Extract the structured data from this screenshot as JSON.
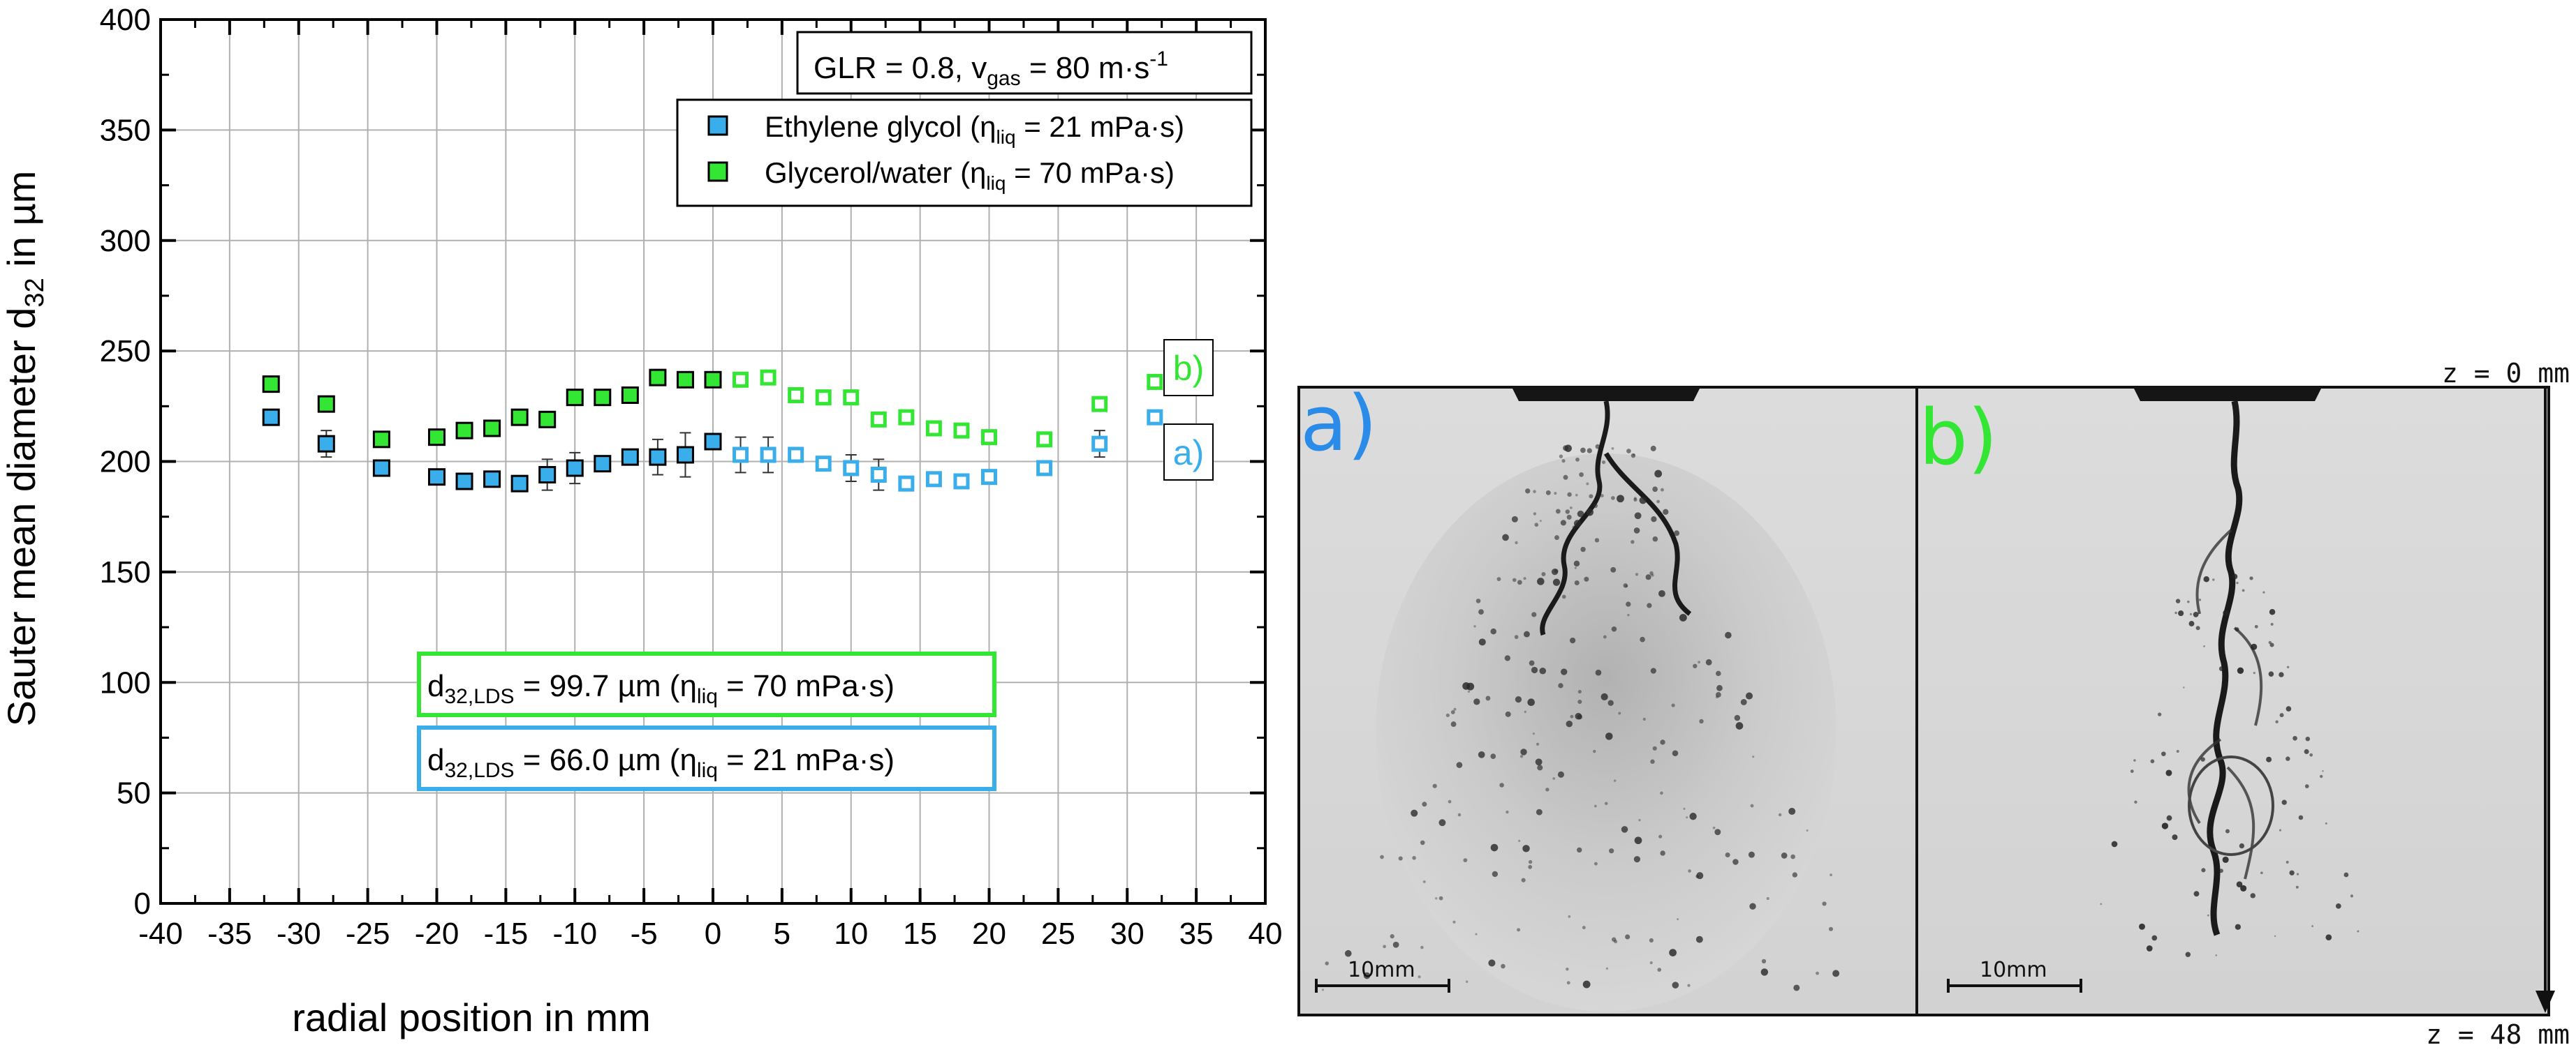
{
  "chart_data": {
    "type": "scatter",
    "xlabel": "radial position in mm",
    "ylabel_main": "Sauter mean diameter d",
    "ylabel_sub": "32",
    "ylabel_tail": " in µm",
    "xlim": [
      -40,
      40
    ],
    "ylim": [
      0,
      400
    ],
    "xticks": [
      "-40",
      "-35",
      "-30",
      "-25",
      "-20",
      "-15",
      "-10",
      "-5",
      "0",
      "5",
      "10",
      "15",
      "20",
      "25",
      "30",
      "35",
      "40"
    ],
    "yticks": [
      "0",
      "50",
      "100",
      "150",
      "200",
      "250",
      "300",
      "350",
      "400"
    ],
    "grid": true,
    "legend_placement": "top-right",
    "condition": {
      "pre": "GLR = 0.8, v",
      "sub": "gas",
      "mid": " = 80 m·s",
      "sup": "-1"
    },
    "series": [
      {
        "name": "Ethylene glycol (η_liq = 21 mPa·s)",
        "legend": {
          "pre": "Ethylene glycol (η",
          "sub": "liq",
          "post": " = 21 mPa·s)"
        },
        "color": "#3aaeea",
        "label": "a)",
        "filled": [
          [
            -32,
            220,
            0
          ],
          [
            -28,
            208,
            6
          ],
          [
            -24,
            197,
            0
          ],
          [
            -20,
            193,
            0
          ],
          [
            -18,
            191,
            0
          ],
          [
            -16,
            192,
            0
          ],
          [
            -14,
            190,
            0
          ],
          [
            -12,
            194,
            7
          ],
          [
            -10,
            197,
            7
          ],
          [
            -8,
            199,
            0
          ],
          [
            -6,
            202,
            0
          ],
          [
            -4,
            202,
            8
          ],
          [
            -2,
            203,
            10
          ],
          [
            0,
            209,
            0
          ]
        ],
        "open": [
          [
            2,
            203,
            8
          ],
          [
            4,
            203,
            8
          ],
          [
            6,
            203,
            0
          ],
          [
            8,
            199,
            0
          ],
          [
            10,
            197,
            6
          ],
          [
            12,
            194,
            7
          ],
          [
            14,
            190,
            0
          ],
          [
            16,
            192,
            0
          ],
          [
            18,
            191,
            0
          ],
          [
            20,
            193,
            0
          ],
          [
            24,
            197,
            0
          ],
          [
            28,
            208,
            6
          ],
          [
            32,
            220,
            0
          ]
        ]
      },
      {
        "name": "Glycerol/water (η_liq = 70 mPa·s)",
        "legend": {
          "pre": "Glycerol/water (η",
          "sub": "liq",
          "post": " = 70 mPa·s)"
        },
        "color": "#33e633",
        "label": "b)",
        "filled": [
          [
            -32,
            235,
            0
          ],
          [
            -28,
            226,
            0
          ],
          [
            -24,
            210,
            0
          ],
          [
            -20,
            211,
            0
          ],
          [
            -18,
            214,
            0
          ],
          [
            -16,
            215,
            0
          ],
          [
            -14,
            220,
            0
          ],
          [
            -12,
            219,
            0
          ],
          [
            -10,
            229,
            0
          ],
          [
            -8,
            229,
            0
          ],
          [
            -6,
            230,
            0
          ],
          [
            -4,
            238,
            0
          ],
          [
            -2,
            237,
            0
          ],
          [
            0,
            237,
            0
          ]
        ],
        "open": [
          [
            2,
            237,
            0
          ],
          [
            4,
            238,
            0
          ],
          [
            6,
            230,
            0
          ],
          [
            8,
            229,
            0
          ],
          [
            10,
            229,
            0
          ],
          [
            12,
            219,
            0
          ],
          [
            14,
            220,
            0
          ],
          [
            16,
            215,
            0
          ],
          [
            18,
            214,
            0
          ],
          [
            20,
            211,
            0
          ],
          [
            24,
            210,
            0
          ],
          [
            28,
            226,
            0
          ],
          [
            32,
            236,
            0
          ]
        ]
      }
    ],
    "lds_boxes": [
      {
        "pre": "d",
        "sub": "32,LDS",
        "mid": " = 99.7 µm (η",
        "sub2": "liq",
        "post": " = 70 mPa·s)",
        "color": "#33e633"
      },
      {
        "pre": "d",
        "sub": "32,LDS",
        "mid": " = 66.0 µm (η",
        "sub2": "liq",
        "post": " = 21 mPa·s)",
        "color": "#3aaeea"
      }
    ]
  },
  "photos": {
    "a": {
      "label": "a)",
      "color": "#2a8be8",
      "scale": "10mm"
    },
    "b": {
      "label": "b)",
      "color": "#33e633",
      "scale": "10mm"
    },
    "z_top": "z = 0 mm",
    "z_bottom": "z = 48 mm"
  }
}
